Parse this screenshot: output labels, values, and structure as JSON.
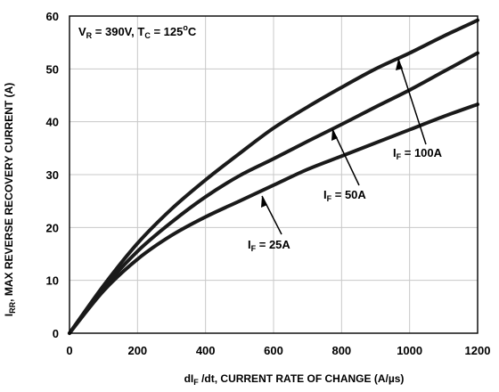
{
  "chart_data": {
    "type": "line",
    "title": "",
    "annotation": {
      "parts": [
        "V",
        "R",
        " = 390V, T",
        "C",
        " = 125",
        "o",
        "C"
      ]
    },
    "xlabel": {
      "parts": [
        "dI",
        "F",
        " /dt, CURRENT RATE OF CHANGE (A/µs)"
      ]
    },
    "ylabel": {
      "parts": [
        "I",
        "RR",
        ", MAX REVERSE RECOVERY CURRENT (A)"
      ]
    },
    "xlim": [
      0,
      1200
    ],
    "ylim": [
      0,
      60
    ],
    "xticks": [
      0,
      200,
      400,
      600,
      800,
      1000,
      1200
    ],
    "yticks": [
      0,
      10,
      20,
      30,
      40,
      50,
      60
    ],
    "grid": true,
    "series": [
      {
        "name": "IF = 100A",
        "label_parts": [
          "I",
          "F",
          " = 100A"
        ],
        "x": [
          0,
          100,
          200,
          300,
          400,
          500,
          600,
          700,
          800,
          900,
          1000,
          1100,
          1200
        ],
        "y": [
          0,
          9,
          17,
          23.5,
          29,
          34,
          38.8,
          42.8,
          46.5,
          50,
          53,
          56.2,
          59.2
        ]
      },
      {
        "name": "IF = 50A",
        "label_parts": [
          "I",
          "F",
          " = 50A"
        ],
        "x": [
          0,
          100,
          200,
          300,
          400,
          500,
          600,
          700,
          800,
          900,
          1000,
          1100,
          1200
        ],
        "y": [
          0,
          8.5,
          15.5,
          21,
          25.8,
          29.8,
          33,
          36.3,
          39.5,
          42.8,
          46,
          49.5,
          53
        ]
      },
      {
        "name": "IF = 25A",
        "label_parts": [
          "I",
          "F",
          " = 25A"
        ],
        "x": [
          0,
          100,
          200,
          300,
          400,
          500,
          600,
          700,
          800,
          900,
          1000,
          1100,
          1200
        ],
        "y": [
          0,
          8,
          14,
          18.5,
          22,
          25,
          28,
          31,
          33.5,
          36,
          38.5,
          41,
          43.3
        ]
      }
    ]
  }
}
